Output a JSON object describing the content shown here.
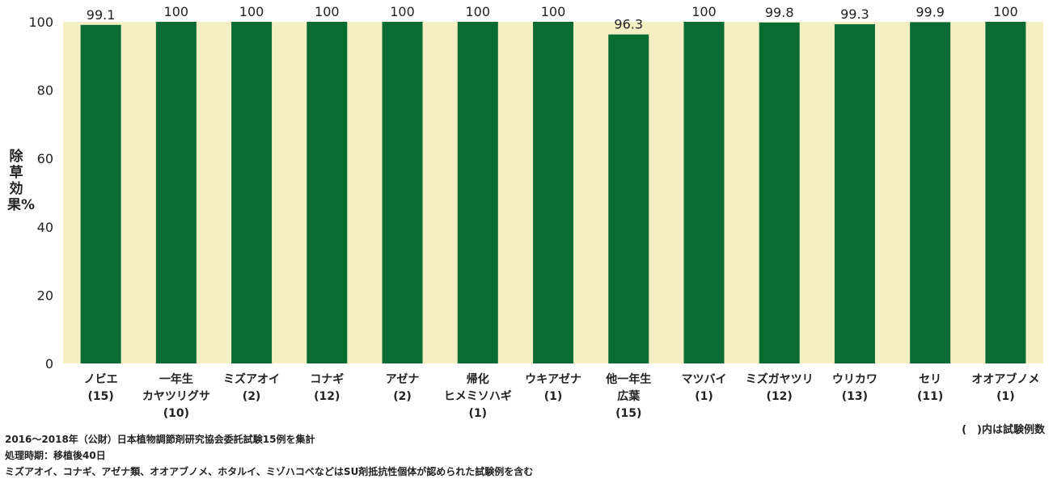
{
  "chart_data": {
    "type": "bar",
    "ylabel": "除草効果%",
    "ylim": [
      0,
      100
    ],
    "yticks": [
      0,
      20,
      40,
      60,
      80,
      100
    ],
    "grid": false,
    "categories": [
      [
        "ノビエ",
        "(15)"
      ],
      [
        "一年生",
        "カヤツリグサ",
        "(10)"
      ],
      [
        "ミズアオイ",
        "(2)"
      ],
      [
        "コナギ",
        "(12)"
      ],
      [
        "アゼナ",
        "(2)"
      ],
      [
        "帰化",
        "ヒメミソハギ",
        "(1)"
      ],
      [
        "ウキアゼナ",
        "(1)"
      ],
      [
        "他一年生",
        "広葉",
        "(15)"
      ],
      [
        "マツバイ",
        "(1)"
      ],
      [
        "ミズガヤツリ",
        "(12)"
      ],
      [
        "ウリカワ",
        "(13)"
      ],
      [
        "セリ",
        "(11)"
      ],
      [
        "オオアブノメ",
        "(1)"
      ]
    ],
    "values": [
      99.1,
      100,
      100,
      100,
      100,
      100,
      100,
      96.3,
      100,
      99.8,
      99.3,
      99.9,
      100
    ],
    "data_labels": [
      "99.1",
      "100",
      "100",
      "100",
      "100",
      "100",
      "100",
      "96.3",
      "100",
      "99.8",
      "99.3",
      "99.9",
      "100"
    ],
    "colors": {
      "bar": "#0a6b33",
      "plot_background": "#f5efc4"
    }
  },
  "legend_note": "(　)内は試験例数",
  "notes": [
    "2016〜2018年（公財）日本植物調節剤研究協会委託試験15例を集計",
    "処理時期：移植後40日",
    "ミズアオイ、コナギ、アゼナ類、オオアブノメ、ホタルイ、ミゾハコベなどはSU剤抵抗性個体が認められた試験例を含む"
  ]
}
